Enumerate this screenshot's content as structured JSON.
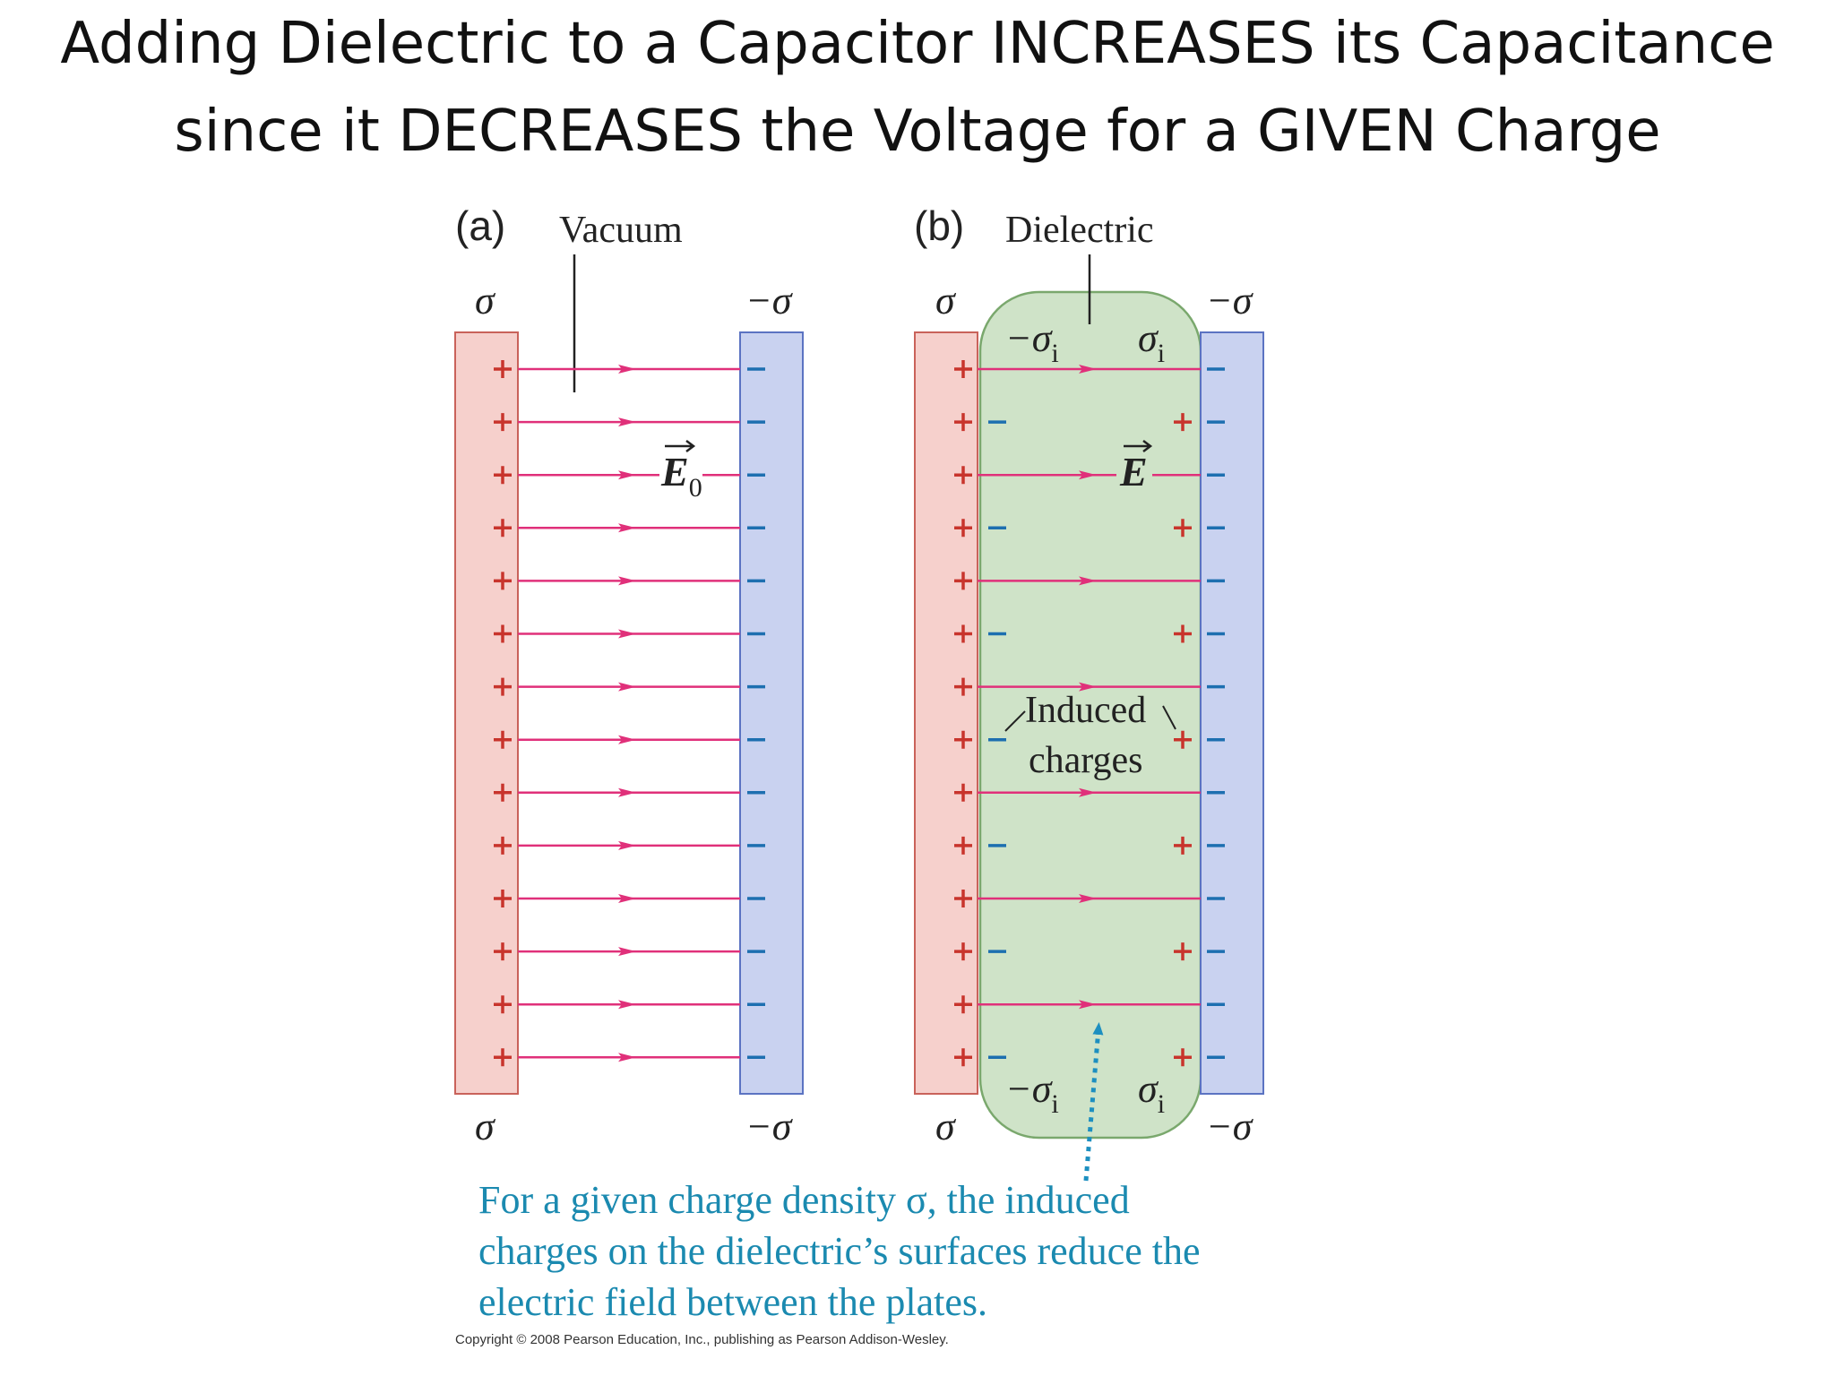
{
  "title": {
    "line1": "Adding Dielectric to a Capacitor INCREASES its Capacitance",
    "line2": "since it DECREASES the Voltage for a GIVEN Charge"
  },
  "panel_a": {
    "tag": "(a)",
    "label": "Vacuum",
    "sigma_left_top": "σ",
    "sigma_right_top": "−σ",
    "sigma_left_bottom": "σ",
    "sigma_right_bottom": "−σ",
    "field_label": "E",
    "field_subscript": "0",
    "plus_count": 14,
    "minus_count": 14,
    "field_line_count": 14
  },
  "panel_b": {
    "tag": "(b)",
    "label": "Dielectric",
    "sigma_left_top": "σ",
    "sigma_right_top": "−σ",
    "sigma_left_bottom": "σ",
    "sigma_right_bottom": "−σ",
    "sigma_i_neg_top": "−σ",
    "sigma_i_pos_top": "σ",
    "sigma_i_neg_bottom": "−σ",
    "sigma_i_pos_bottom": "σ",
    "sigma_i_subscript": "i",
    "field_label": "E",
    "induced_line1": "Induced",
    "induced_line2": "charges",
    "plus_count": 14,
    "minus_count": 14,
    "field_line_count": 7,
    "induced_charge_count": 7
  },
  "caption": {
    "line1": "For a given charge density σ, the induced",
    "line2": "charges on the dielectric’s surfaces reduce the",
    "line3": "electric field between the plates."
  },
  "copyright": "Copyright © 2008 Pearson Education, Inc., publishing as Pearson Addison-Wesley.",
  "colors": {
    "positive_plate": "#f6d0cc",
    "positive_plate_border": "#c9625a",
    "negative_plate": "#c9d2f0",
    "negative_plate_border": "#5b73c2",
    "plus_sign": "#c8342c",
    "minus_sign": "#1d6fb0",
    "field_line": "#e0307a",
    "dielectric_fill": "#cfe3c8",
    "dielectric_border": "#7aa86d",
    "caption_text": "#1b8ab0"
  }
}
